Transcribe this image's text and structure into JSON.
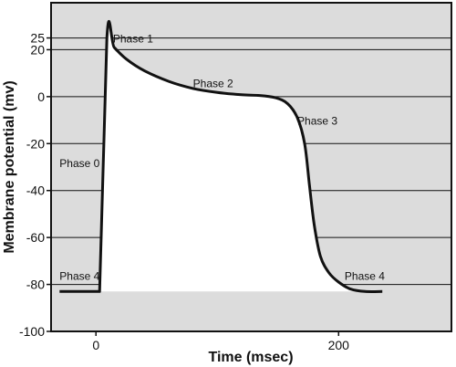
{
  "chart_data": {
    "type": "line",
    "title": "",
    "xlabel": "Time (msec)",
    "ylabel": "Membrane potential (mv)",
    "xlim": [
      -37,
      293
    ],
    "ylim": [
      -100,
      40
    ],
    "x_ticks": [
      0,
      200
    ],
    "y_ticks": [
      25,
      20,
      0,
      -20,
      -40,
      -60,
      -80,
      -100
    ],
    "grid": "horizontal",
    "colors": {
      "background": "#dcdcdc",
      "line": "#111111",
      "plot_fill": "#ffffff"
    },
    "series": [
      {
        "points": [
          [
            -30,
            -83
          ],
          [
            3,
            -83
          ],
          [
            9,
            25
          ],
          [
            15,
            21
          ],
          [
            25,
            16
          ],
          [
            40,
            11
          ],
          [
            60,
            6.5
          ],
          [
            80,
            3.5
          ],
          [
            100,
            1.8
          ],
          [
            120,
            0.8
          ],
          [
            135,
            0.5
          ],
          [
            148,
            -0.5
          ],
          [
            158,
            -3
          ],
          [
            166,
            -9
          ],
          [
            172,
            -20
          ],
          [
            176,
            -38
          ],
          [
            180,
            -55
          ],
          [
            185,
            -68
          ],
          [
            192,
            -75
          ],
          [
            200,
            -79
          ],
          [
            210,
            -82
          ],
          [
            222,
            -83
          ],
          [
            236,
            -83
          ]
        ]
      }
    ],
    "annotations": [
      {
        "text": "Phase 1",
        "x": 14,
        "y": 23
      },
      {
        "text": "Phase 2",
        "x": 80,
        "y": 4
      },
      {
        "text": "Phase 3",
        "x": 166,
        "y": -12
      },
      {
        "text": "Phase 0",
        "x": -30,
        "y": -30
      },
      {
        "text": "Phase 4",
        "x": -30,
        "y": -78
      },
      {
        "text": "Phase 4",
        "x": 205,
        "y": -78
      }
    ]
  }
}
